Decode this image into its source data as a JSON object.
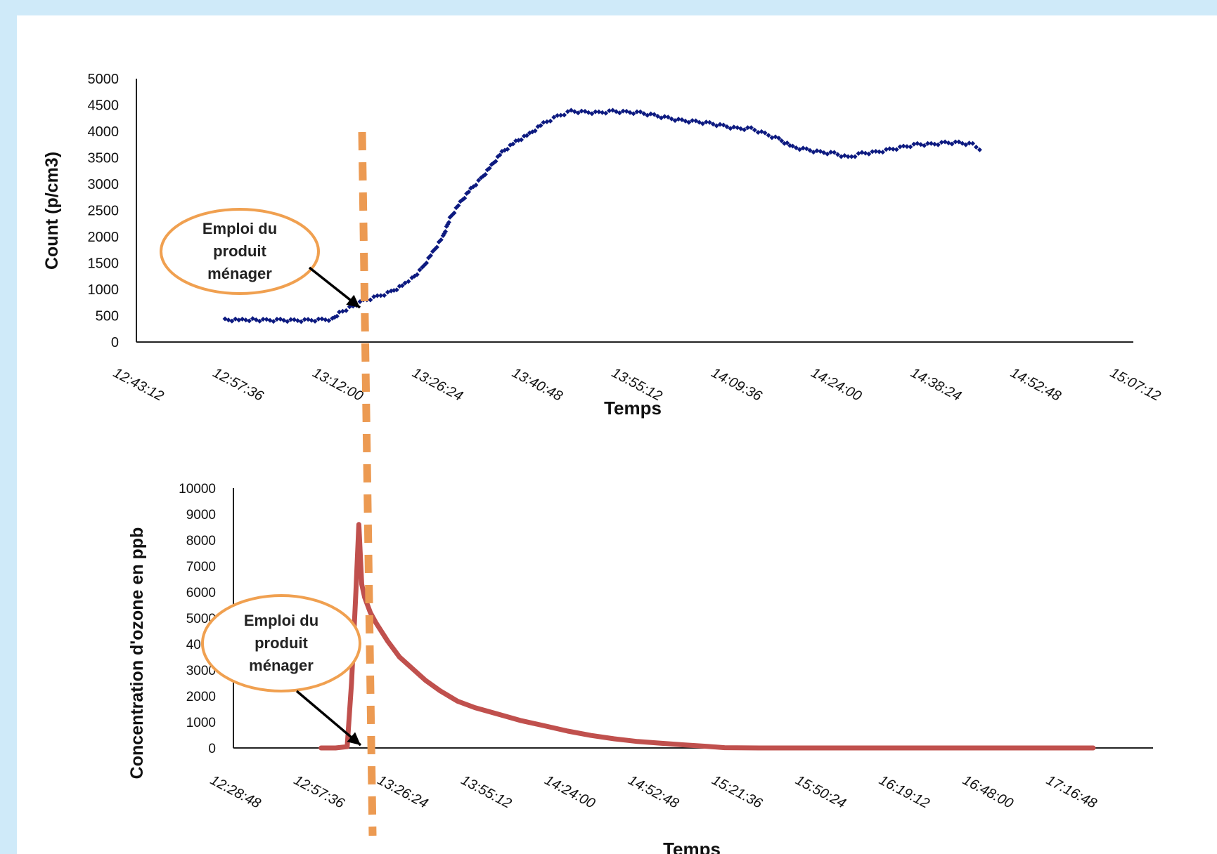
{
  "chart_data": [
    {
      "type": "scatter",
      "xlabel": "Temps",
      "ylabel": "Count (p/cm3)",
      "ylim": [
        0,
        5000
      ],
      "yticks": [
        0,
        500,
        1000,
        1500,
        2000,
        2500,
        3000,
        3500,
        4000,
        4500,
        5000
      ],
      "xlim": [
        "12:43:12",
        "15:07:12"
      ],
      "xticks": [
        "12:43:12",
        "12:57:36",
        "13:12:00",
        "13:26:24",
        "13:40:48",
        "13:55:12",
        "14:09:36",
        "14:24:00",
        "14:38:24",
        "14:52:48",
        "15:07:12"
      ],
      "series": [
        {
          "color": "#0d1a80",
          "points": [
            [
              "12:56:00",
              420
            ],
            [
              "12:58:30",
              415
            ],
            [
              "13:00:00",
              425
            ],
            [
              "13:02:00",
              410
            ],
            [
              "13:04:00",
              415
            ],
            [
              "13:06:00",
              405
            ],
            [
              "13:08:00",
              410
            ],
            [
              "13:10:00",
              420
            ],
            [
              "13:11:30",
              430
            ],
            [
              "13:12:30",
              550
            ],
            [
              "13:14:00",
              650
            ],
            [
              "13:16:00",
              780
            ],
            [
              "13:18:00",
              860
            ],
            [
              "13:20:00",
              950
            ],
            [
              "13:22:00",
              1100
            ],
            [
              "13:23:00",
              1200
            ],
            [
              "13:24:30",
              1400
            ],
            [
              "13:26:00",
              1700
            ],
            [
              "13:27:30",
              2000
            ],
            [
              "13:28:30",
              2350
            ],
            [
              "13:30:00",
              2650
            ],
            [
              "13:31:30",
              2900
            ],
            [
              "13:33:00",
              3100
            ],
            [
              "13:34:30",
              3350
            ],
            [
              "13:36:00",
              3600
            ],
            [
              "13:38:00",
              3800
            ],
            [
              "13:40:00",
              3950
            ],
            [
              "13:42:00",
              4150
            ],
            [
              "13:44:00",
              4280
            ],
            [
              "13:46:00",
              4380
            ],
            [
              "13:48:00",
              4360
            ],
            [
              "13:50:00",
              4350
            ],
            [
              "13:52:00",
              4380
            ],
            [
              "13:54:00",
              4360
            ],
            [
              "13:56:00",
              4350
            ],
            [
              "13:58:00",
              4300
            ],
            [
              "14:00:00",
              4250
            ],
            [
              "14:02:00",
              4200
            ],
            [
              "14:04:00",
              4180
            ],
            [
              "14:06:00",
              4150
            ],
            [
              "14:08:00",
              4100
            ],
            [
              "14:10:00",
              4050
            ],
            [
              "14:12:00",
              4050
            ],
            [
              "14:14:00",
              3950
            ],
            [
              "14:16:00",
              3850
            ],
            [
              "14:18:00",
              3700
            ],
            [
              "14:20:00",
              3650
            ],
            [
              "14:22:00",
              3600
            ],
            [
              "14:24:00",
              3580
            ],
            [
              "14:26:00",
              3500
            ],
            [
              "14:28:00",
              3580
            ],
            [
              "14:30:00",
              3600
            ],
            [
              "14:32:00",
              3650
            ],
            [
              "14:34:00",
              3700
            ],
            [
              "14:36:00",
              3750
            ],
            [
              "14:38:00",
              3750
            ],
            [
              "14:40:00",
              3780
            ],
            [
              "14:42:00",
              3780
            ],
            [
              "14:44:00",
              3750
            ],
            [
              "14:45:00",
              3650
            ]
          ]
        }
      ],
      "annotation": {
        "lines": [
          "Emploi du",
          "produit",
          "ménager"
        ]
      }
    },
    {
      "type": "line",
      "xlabel": "Temps",
      "ylabel": "Concentration d'ozone  en  ppb",
      "ylim": [
        0,
        10000
      ],
      "yticks": [
        0,
        1000,
        2000,
        3000,
        4000,
        5000,
        6000,
        7000,
        8000,
        9000,
        10000
      ],
      "xlim": [
        "12:28:48",
        "17:45:36"
      ],
      "xticks": [
        "12:28:48",
        "12:57:36",
        "13:26:24",
        "13:55:12",
        "14:24:00",
        "14:52:48",
        "15:21:36",
        "15:50:24",
        "16:19:12",
        "16:48:00",
        "17:16:48"
      ],
      "series": [
        {
          "color": "#c0504d",
          "points": [
            [
              "12:59:00",
              0
            ],
            [
              "13:04:00",
              0
            ],
            [
              "13:08:00",
              50
            ],
            [
              "13:09:30",
              2500
            ],
            [
              "13:11:00",
              6000
            ],
            [
              "13:12:00",
              8600
            ],
            [
              "13:13:00",
              6300
            ],
            [
              "13:14:00",
              5800
            ],
            [
              "13:16:00",
              5200
            ],
            [
              "13:18:00",
              4800
            ],
            [
              "13:22:00",
              4100
            ],
            [
              "13:26:00",
              3500
            ],
            [
              "13:30:00",
              3100
            ],
            [
              "13:35:00",
              2600
            ],
            [
              "13:40:00",
              2200
            ],
            [
              "13:46:00",
              1800
            ],
            [
              "13:52:00",
              1550
            ],
            [
              "14:00:00",
              1300
            ],
            [
              "14:08:00",
              1050
            ],
            [
              "14:16:00",
              850
            ],
            [
              "14:24:00",
              650
            ],
            [
              "14:32:00",
              480
            ],
            [
              "14:40:00",
              350
            ],
            [
              "14:48:00",
              250
            ],
            [
              "14:56:00",
              180
            ],
            [
              "15:04:00",
              120
            ],
            [
              "15:12:00",
              60
            ],
            [
              "15:18:00",
              10
            ],
            [
              "15:30:00",
              0
            ],
            [
              "16:00:00",
              0
            ],
            [
              "16:30:00",
              0
            ],
            [
              "17:00:00",
              0
            ],
            [
              "17:25:00",
              0
            ]
          ]
        }
      ],
      "annotation": {
        "lines": [
          "Emploi du",
          "produit",
          "ménager"
        ]
      }
    }
  ]
}
